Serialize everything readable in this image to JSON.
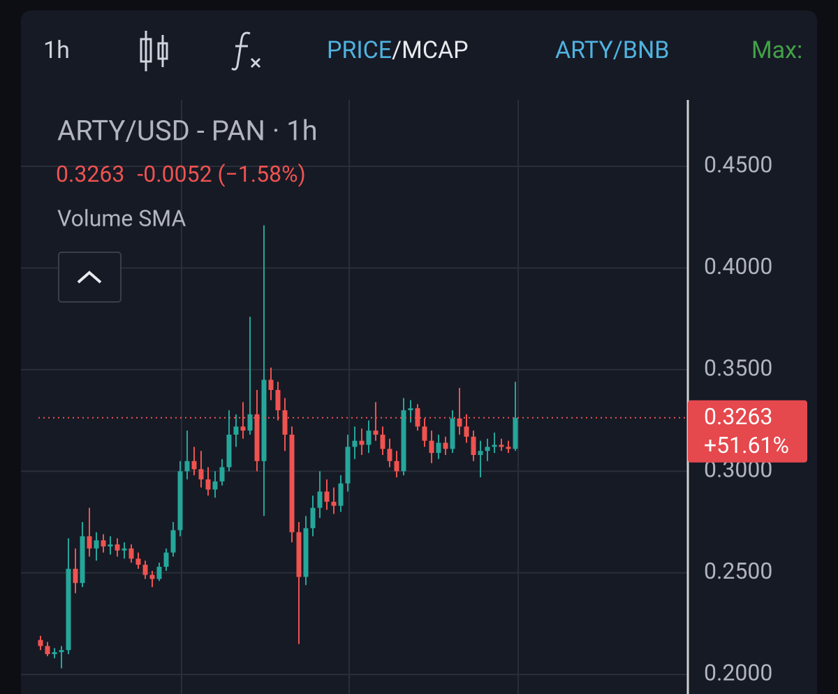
{
  "toolbar": {
    "interval": "1h",
    "price": "PRICE",
    "mcap": "/MCAP",
    "pair": "ARTY/BNB",
    "max": "Max:"
  },
  "chart_data": {
    "type": "candlestick",
    "title": "ARTY/USD - PAN · 1h",
    "last_price": {
      "value": 0.3263,
      "label": "0.3263"
    },
    "change": "-0.0052 (−1.58%)",
    "price_change_pct": "+51.61%",
    "indicator": "Volume SMA",
    "up_color": "#26a69a",
    "down_color": "#ef5350",
    "grid": true,
    "ylim": [
      0.1904,
      0.482
    ],
    "yticks": [
      {
        "value": 0.45,
        "label": "0.4500"
      },
      {
        "value": 0.4,
        "label": "0.4000"
      },
      {
        "value": 0.35,
        "label": "0.3500"
      },
      {
        "value": 0.3,
        "label": "0.3000"
      },
      {
        "value": 0.25,
        "label": "0.2500"
      },
      {
        "value": 0.2,
        "label": "0.2000"
      }
    ],
    "open": [
      0.217,
      0.214,
      0.21,
      0.211,
      0.212,
      0.252,
      0.245,
      0.268,
      0.262,
      0.266,
      0.263,
      0.264,
      0.261,
      0.262,
      0.257,
      0.254,
      0.249,
      0.247,
      0.253,
      0.26,
      0.271,
      0.3,
      0.305,
      0.301,
      0.296,
      0.291,
      0.295,
      0.302,
      0.318,
      0.322,
      0.32,
      0.328,
      0.305,
      0.345,
      0.34,
      0.33,
      0.318,
      0.27,
      0.248,
      0.272,
      0.282,
      0.29,
      0.285,
      0.283,
      0.294,
      0.312,
      0.315,
      0.313,
      0.32,
      0.318,
      0.311,
      0.305,
      0.3,
      0.33,
      0.331,
      0.322,
      0.315,
      0.309,
      0.314,
      0.311,
      0.326,
      0.322,
      0.317,
      0.308,
      0.31,
      0.312,
      0.313,
      0.312,
      0.311
    ],
    "high": [
      0.219,
      0.216,
      0.213,
      0.214,
      0.267,
      0.262,
      0.275,
      0.282,
      0.27,
      0.269,
      0.268,
      0.267,
      0.265,
      0.264,
      0.26,
      0.256,
      0.251,
      0.255,
      0.262,
      0.275,
      0.305,
      0.32,
      0.312,
      0.31,
      0.302,
      0.3,
      0.306,
      0.33,
      0.328,
      0.334,
      0.376,
      0.34,
      0.421,
      0.351,
      0.344,
      0.336,
      0.322,
      0.275,
      0.278,
      0.288,
      0.3,
      0.296,
      0.292,
      0.298,
      0.318,
      0.322,
      0.321,
      0.325,
      0.334,
      0.322,
      0.316,
      0.31,
      0.336,
      0.335,
      0.333,
      0.326,
      0.32,
      0.318,
      0.317,
      0.33,
      0.341,
      0.328,
      0.32,
      0.315,
      0.316,
      0.319,
      0.316,
      0.315,
      0.344
    ],
    "low": [
      0.212,
      0.209,
      0.208,
      0.203,
      0.21,
      0.24,
      0.243,
      0.258,
      0.256,
      0.26,
      0.259,
      0.258,
      0.257,
      0.255,
      0.252,
      0.247,
      0.243,
      0.246,
      0.251,
      0.258,
      0.268,
      0.296,
      0.298,
      0.292,
      0.288,
      0.287,
      0.293,
      0.3,
      0.312,
      0.316,
      0.318,
      0.3,
      0.278,
      0.335,
      0.325,
      0.31,
      0.265,
      0.215,
      0.244,
      0.268,
      0.277,
      0.281,
      0.279,
      0.28,
      0.29,
      0.306,
      0.308,
      0.309,
      0.315,
      0.308,
      0.302,
      0.297,
      0.298,
      0.324,
      0.32,
      0.312,
      0.304,
      0.306,
      0.308,
      0.309,
      0.318,
      0.314,
      0.305,
      0.297,
      0.305,
      0.309,
      0.31,
      0.309,
      0.31
    ],
    "close": [
      0.214,
      0.21,
      0.211,
      0.212,
      0.252,
      0.245,
      0.268,
      0.262,
      0.266,
      0.263,
      0.264,
      0.261,
      0.262,
      0.257,
      0.254,
      0.249,
      0.247,
      0.253,
      0.26,
      0.271,
      0.3,
      0.305,
      0.301,
      0.296,
      0.291,
      0.295,
      0.302,
      0.318,
      0.322,
      0.32,
      0.328,
      0.305,
      0.345,
      0.34,
      0.33,
      0.318,
      0.27,
      0.248,
      0.272,
      0.282,
      0.29,
      0.285,
      0.283,
      0.294,
      0.312,
      0.315,
      0.313,
      0.32,
      0.318,
      0.311,
      0.305,
      0.3,
      0.33,
      0.331,
      0.322,
      0.315,
      0.309,
      0.314,
      0.311,
      0.326,
      0.322,
      0.317,
      0.308,
      0.31,
      0.312,
      0.313,
      0.312,
      0.311,
      0.3263
    ]
  }
}
